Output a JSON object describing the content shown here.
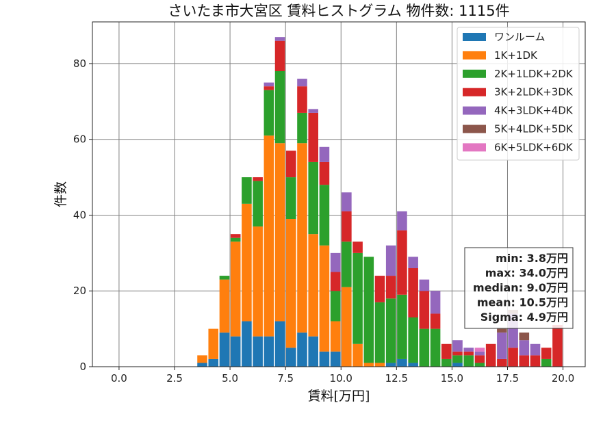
{
  "chart_data": {
    "type": "bar",
    "stacked": true,
    "title": "さいたま市大宮区 賃料ヒストグラム  物件数: 1115件",
    "xlabel": "賃料[万円]",
    "ylabel": "件数",
    "xlim": [
      -1.2,
      21.0
    ],
    "ylim": [
      0,
      91
    ],
    "xticks": [
      0.0,
      2.5,
      5.0,
      7.5,
      10.0,
      12.5,
      15.0,
      17.5,
      20.0
    ],
    "xtick_labels": [
      "0.0",
      "2.5",
      "5.0",
      "7.5",
      "10.0",
      "12.5",
      "15.0",
      "17.5",
      "20.0"
    ],
    "yticks": [
      0,
      20,
      40,
      60,
      80
    ],
    "ytick_labels": [
      "0",
      "20",
      "40",
      "60",
      "80"
    ],
    "grid": true,
    "legend_position": "top-right",
    "bin_width": 0.5,
    "x": [
      3.75,
      4.25,
      4.75,
      5.25,
      5.75,
      6.25,
      6.75,
      7.25,
      7.75,
      8.25,
      8.75,
      9.25,
      9.75,
      10.25,
      10.75,
      11.25,
      11.75,
      12.25,
      12.75,
      13.25,
      13.75,
      14.25,
      14.75,
      15.25,
      15.75,
      16.25,
      16.75,
      17.25,
      17.75,
      18.25,
      18.75,
      19.25,
      19.75
    ],
    "series": [
      {
        "name": "ワンルーム",
        "color": "#1f77b4",
        "values": [
          1,
          2,
          9,
          8,
          12,
          8,
          8,
          12,
          5,
          9,
          8,
          4,
          4,
          0,
          0,
          0,
          0,
          1,
          2,
          1,
          0,
          0,
          0,
          1,
          0,
          0,
          0,
          0,
          0,
          0,
          0,
          0,
          0
        ]
      },
      {
        "name": "1K+1DK",
        "color": "#ff7f0e",
        "values": [
          2,
          8,
          14,
          25,
          31,
          29,
          53,
          47,
          34,
          50,
          27,
          28,
          8,
          21,
          6,
          1,
          1,
          0,
          0,
          0,
          0,
          0,
          0,
          0,
          0,
          0,
          0,
          0,
          0,
          0,
          0,
          0,
          0
        ]
      },
      {
        "name": "2K+1LDK+2DK",
        "color": "#2ca02c",
        "values": [
          0,
          0,
          1,
          1,
          7,
          12,
          12,
          19,
          11,
          8,
          19,
          16,
          8,
          12,
          24,
          28,
          16,
          17,
          17,
          12,
          10,
          10,
          2,
          2,
          3,
          1,
          0,
          0,
          0,
          0,
          0,
          2,
          0
        ]
      },
      {
        "name": "3K+2LDK+3DK",
        "color": "#d62728",
        "values": [
          0,
          0,
          0,
          1,
          0,
          1,
          1,
          8,
          7,
          7,
          13,
          6,
          5,
          8,
          3,
          0,
          7,
          6,
          17,
          13,
          10,
          4,
          4,
          1,
          1,
          2,
          6,
          2,
          5,
          3,
          3,
          3,
          11
        ]
      },
      {
        "name": "4K+3LDK+4DK",
        "color": "#9467bd",
        "values": [
          0,
          0,
          0,
          0,
          0,
          0,
          1,
          1,
          0,
          2,
          1,
          4,
          5,
          5,
          0,
          0,
          0,
          8,
          5,
          3,
          3,
          6,
          0,
          3,
          1,
          1,
          0,
          7,
          9,
          4,
          3,
          0,
          0
        ]
      },
      {
        "name": "5K+4LDK+5DK",
        "color": "#8c564b",
        "values": [
          0,
          0,
          0,
          0,
          0,
          0,
          0,
          0,
          0,
          0,
          0,
          0,
          0,
          0,
          0,
          0,
          0,
          0,
          0,
          0,
          0,
          0,
          0,
          0,
          0,
          0,
          0,
          1,
          1,
          2,
          0,
          0,
          0
        ]
      },
      {
        "name": "6K+5LDK+6DK",
        "color": "#e377c2",
        "values": [
          0,
          0,
          0,
          0,
          0,
          0,
          0,
          0,
          0,
          0,
          0,
          0,
          0,
          0,
          0,
          0,
          0,
          0,
          0,
          0,
          0,
          0,
          0,
          0,
          0,
          1,
          0,
          0,
          0,
          0,
          0,
          0,
          0
        ]
      }
    ],
    "stats_lines": [
      "min: 3.8万円",
      "max: 34.0万円",
      "median: 9.0万円",
      "mean: 10.5万円",
      "Sigma: 4.9万円"
    ]
  }
}
